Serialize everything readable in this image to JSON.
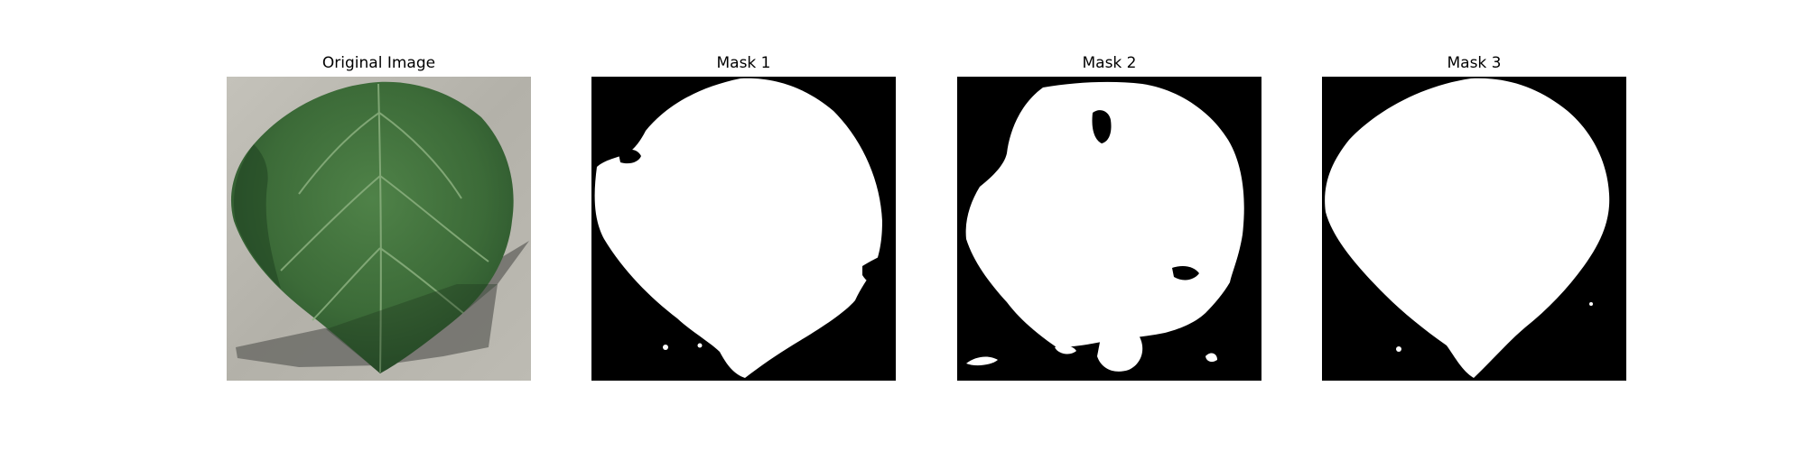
{
  "figure": {
    "panels": [
      {
        "title": "Original Image",
        "kind": "photo",
        "subject": "leaf"
      },
      {
        "title": "Mask 1",
        "kind": "binary-mask"
      },
      {
        "title": "Mask 2",
        "kind": "binary-mask"
      },
      {
        "title": "Mask 3",
        "kind": "binary-mask"
      }
    ],
    "colors": {
      "mask_background": "#000000",
      "mask_foreground": "#ffffff",
      "leaf_green": "#3f6e3a",
      "leaf_dark": "#264d26",
      "ground": "#b7b5ad",
      "shadow": "#6d6d69"
    }
  }
}
